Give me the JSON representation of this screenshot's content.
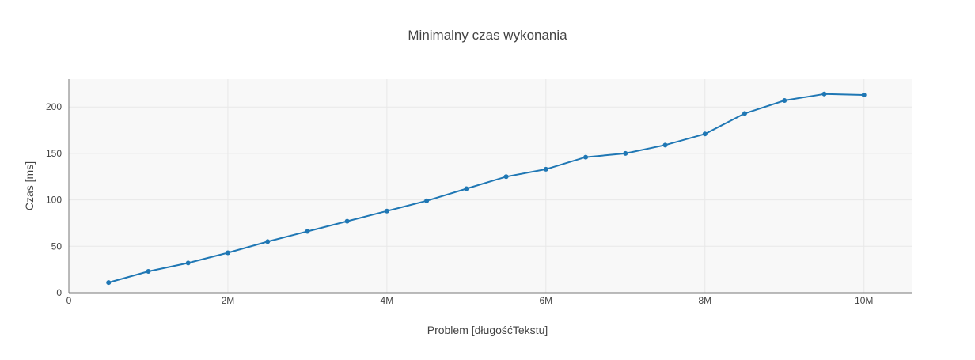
{
  "chart_data": {
    "type": "line",
    "title": "Minimalny czas wykonania",
    "xlabel": "Problem [długośćTekstu]",
    "ylabel": "Czas [ms]",
    "xlim": [
      0,
      10600000
    ],
    "ylim": [
      0,
      230
    ],
    "x_ticks": [
      0,
      2000000,
      4000000,
      6000000,
      8000000,
      10000000
    ],
    "x_tick_labels": [
      "0",
      "2M",
      "4M",
      "6M",
      "8M",
      "10M"
    ],
    "y_ticks": [
      0,
      50,
      100,
      150,
      200
    ],
    "y_tick_labels": [
      "0",
      "50",
      "100",
      "150",
      "200"
    ],
    "grid": true,
    "legend": "none",
    "series": [
      {
        "x": [
          500000,
          1000000,
          1500000,
          2000000,
          2500000,
          3000000,
          3500000,
          4000000,
          4500000,
          5000000,
          5500000,
          6000000,
          6500000,
          7000000,
          7500000,
          8000000,
          8500000,
          9000000,
          9500000,
          10000000
        ],
        "values": [
          11,
          23,
          32,
          43,
          55,
          66,
          77,
          88,
          99,
          112,
          125,
          133,
          146,
          150,
          159,
          171,
          193,
          207,
          214,
          213
        ]
      }
    ],
    "colors": {
      "line": "#1f77b4",
      "plot_bg": "#f8f8f8",
      "grid": "#e8e8e8",
      "axis": "#777777",
      "text": "#444444"
    }
  }
}
